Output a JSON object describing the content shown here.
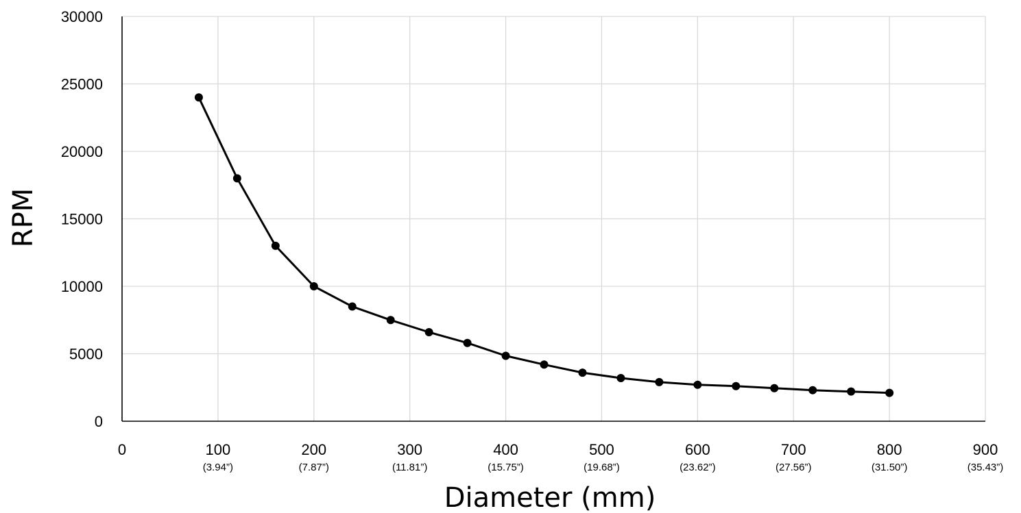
{
  "chart_data": {
    "type": "line",
    "title": "",
    "xlabel": "Diameter (mm)",
    "ylabel": "RPM",
    "xlim": [
      0,
      900
    ],
    "ylim": [
      0,
      30000
    ],
    "grid": true,
    "legend": "none",
    "x_ticks": [
      {
        "value": 0,
        "label": "0",
        "sub": ""
      },
      {
        "value": 100,
        "label": "100",
        "sub": "(3.94”)"
      },
      {
        "value": 200,
        "label": "200",
        "sub": "(7.87”)"
      },
      {
        "value": 300,
        "label": "300",
        "sub": "(11.81”)"
      },
      {
        "value": 400,
        "label": "400",
        "sub": "(15.75”)"
      },
      {
        "value": 500,
        "label": "500",
        "sub": "(19.68”)"
      },
      {
        "value": 600,
        "label": "600",
        "sub": "(23.62”)"
      },
      {
        "value": 700,
        "label": "700",
        "sub": "(27.56”)"
      },
      {
        "value": 800,
        "label": "800",
        "sub": "(31.50”)"
      },
      {
        "value": 900,
        "label": "900",
        "sub": "(35.43”)"
      }
    ],
    "y_ticks": [
      {
        "value": 0,
        "label": "0"
      },
      {
        "value": 5000,
        "label": "5000"
      },
      {
        "value": 10000,
        "label": "10000"
      },
      {
        "value": 15000,
        "label": "15000"
      },
      {
        "value": 20000,
        "label": "20000"
      },
      {
        "value": 25000,
        "label": "25000"
      },
      {
        "value": 30000,
        "label": "30000"
      }
    ],
    "series": [
      {
        "color": "#000000",
        "x": [
          80,
          120,
          160,
          200,
          240,
          280,
          320,
          360,
          400,
          440,
          480,
          520,
          560,
          600,
          640,
          680,
          720,
          760,
          800
        ],
        "y": [
          24000,
          18000,
          13000,
          10000,
          8500,
          7500,
          6600,
          5800,
          4850,
          4200,
          3600,
          3200,
          2900,
          2700,
          2600,
          2450,
          2300,
          2200,
          2100
        ]
      }
    ],
    "colors": {
      "grid": "#d9d9d9",
      "axis": "#000000",
      "line": "#000000"
    }
  }
}
